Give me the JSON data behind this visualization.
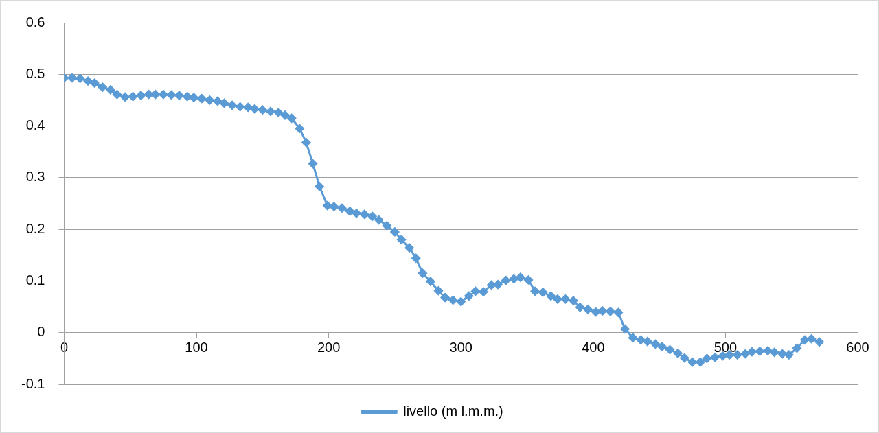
{
  "chart_data": {
    "type": "line",
    "x": [
      0,
      6,
      12,
      18,
      23,
      29,
      35,
      40,
      46,
      52,
      58,
      64,
      69,
      75,
      81,
      87,
      93,
      98,
      104,
      110,
      116,
      121,
      127,
      133,
      139,
      144,
      150,
      156,
      162,
      167,
      172,
      178,
      183,
      188,
      193,
      199,
      204,
      210,
      216,
      221,
      227,
      233,
      238,
      244,
      250,
      255,
      261,
      266,
      271,
      277,
      283,
      288,
      294,
      300,
      306,
      311,
      317,
      323,
      328,
      334,
      340,
      345,
      351,
      356,
      362,
      368,
      373,
      379,
      385,
      390,
      396,
      402,
      407,
      413,
      419,
      424,
      430,
      436,
      441,
      447,
      452,
      458,
      464,
      469,
      475,
      481,
      486,
      492,
      498,
      503,
      509,
      515,
      520,
      526,
      532,
      537,
      543,
      548,
      554,
      560,
      565,
      571
    ],
    "series": [
      {
        "name": "livello (m l.m.m.)",
        "color": "#5b9bd5",
        "values": [
          0.493,
          0.493,
          0.492,
          0.487,
          0.483,
          0.475,
          0.47,
          0.461,
          0.456,
          0.457,
          0.459,
          0.461,
          0.461,
          0.461,
          0.46,
          0.459,
          0.457,
          0.455,
          0.453,
          0.45,
          0.448,
          0.444,
          0.44,
          0.437,
          0.436,
          0.433,
          0.431,
          0.428,
          0.426,
          0.421,
          0.415,
          0.395,
          0.368,
          0.327,
          0.283,
          0.246,
          0.244,
          0.241,
          0.235,
          0.231,
          0.229,
          0.225,
          0.218,
          0.207,
          0.195,
          0.18,
          0.164,
          0.144,
          0.115,
          0.099,
          0.081,
          0.068,
          0.063,
          0.06,
          0.071,
          0.08,
          0.079,
          0.092,
          0.093,
          0.101,
          0.104,
          0.107,
          0.102,
          0.08,
          0.078,
          0.071,
          0.065,
          0.065,
          0.062,
          0.049,
          0.045,
          0.04,
          0.042,
          0.041,
          0.039,
          0.007,
          -0.01,
          -0.014,
          -0.017,
          -0.022,
          -0.027,
          -0.033,
          -0.04,
          -0.049,
          -0.057,
          -0.057,
          -0.05,
          -0.048,
          -0.045,
          -0.043,
          -0.043,
          -0.041,
          -0.037,
          -0.036,
          -0.035,
          -0.038,
          -0.041,
          -0.043,
          -0.03,
          -0.014,
          -0.012,
          -0.018
        ]
      }
    ],
    "xlim": [
      0,
      600
    ],
    "xticks": [
      0,
      100,
      200,
      300,
      400,
      500,
      600
    ],
    "ylim": [
      -0.1,
      0.6
    ],
    "yticks": [
      -0.1,
      0,
      0.1,
      0.2,
      0.3,
      0.4,
      0.5,
      0.6
    ],
    "grid": "y",
    "legend": "bottom",
    "marker": "diamond",
    "line_style": "solid"
  }
}
